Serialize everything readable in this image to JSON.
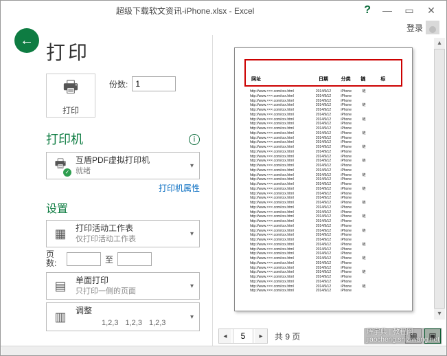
{
  "titlebar": {
    "filename": "超级下载软文资讯-iPhone.xlsx - Excel",
    "help": "?",
    "login": "登录"
  },
  "heading": "打印",
  "print_button": "打印",
  "copies": {
    "label": "份数:",
    "value": "1"
  },
  "printer": {
    "section": "打印机",
    "name": "互盾PDF虚拟打印机",
    "status": "就绪",
    "props_link": "打印机属性"
  },
  "settings": {
    "section": "设置",
    "scope": {
      "title": "打印活动工作表",
      "sub": "仅打印活动工作表"
    },
    "pages": {
      "label": "页数:",
      "to": "至"
    },
    "sides": {
      "title": "单面打印",
      "sub": "只打印一侧的页面"
    },
    "collate": {
      "title": "调整",
      "v1": "1,2,3",
      "v2": "1,2,3",
      "v3": "1,2,3"
    }
  },
  "preview": {
    "headers": [
      "网址",
      "日期",
      "分类",
      "链",
      "标"
    ],
    "row_url": "http://www.×××.com/xxx.html",
    "row_date": "2014/9/12",
    "row_cat": "iPhone",
    "row_lnk": "链",
    "row_tag": "",
    "row_count": 44,
    "current_page": "5",
    "total_pages": "共 9 页"
  },
  "watermark": {
    "l1": "珲宇典 | 教程网",
    "l2": "jiaocheng.shiziwang.net"
  }
}
